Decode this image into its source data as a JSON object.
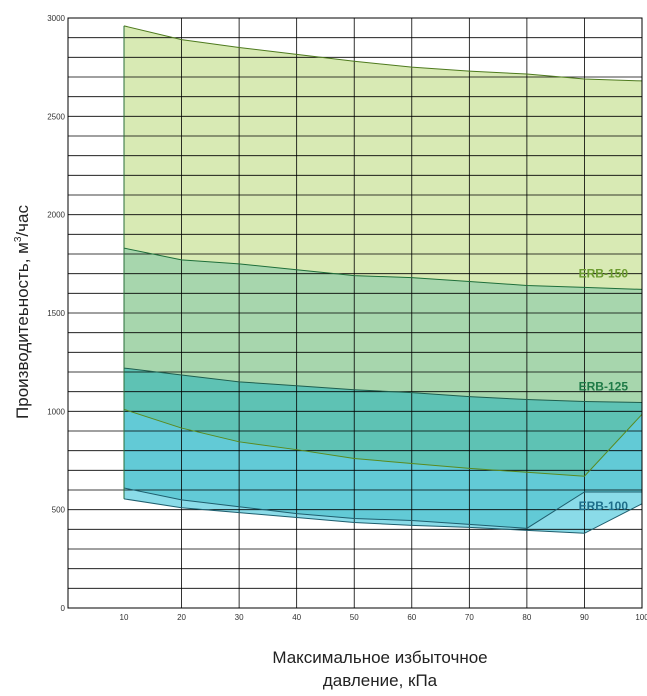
{
  "chart_data": {
    "type": "area",
    "title": "",
    "ylabel_main": "Производитеьность, м",
    "ylabel_sup": "3",
    "ylabel_tail": "/час",
    "xlabel_line1": "Максимальное избыточное",
    "xlabel_line2": "давление, кПа",
    "x_ticks": [
      10,
      20,
      30,
      40,
      50,
      60,
      70,
      80,
      90,
      100
    ],
    "x_tick_labels": [
      "10",
      "20",
      "30",
      "40",
      "50",
      "60",
      "70",
      "80",
      "90",
      "100"
    ],
    "y_ticks": [
      0,
      500,
      1000,
      1500,
      2000,
      2500,
      3000
    ],
    "y_tick_labels": [
      "0",
      "500",
      "1000",
      "1500",
      "2000",
      "2500",
      "3000"
    ],
    "xlim": [
      0,
      100
    ],
    "ylim": [
      0,
      3000
    ],
    "grid": true,
    "series": [
      {
        "name": "ERB-150",
        "color": "#d8eab4",
        "line_color": "#4e7a1e",
        "label_color": "#6a9a2e",
        "upper": {
          "x": [
            10,
            20,
            30,
            40,
            50,
            60,
            70,
            80,
            90,
            100
          ],
          "y": [
            2960,
            2890,
            2850,
            2815,
            2780,
            2750,
            2730,
            2715,
            2690,
            2680
          ]
        },
        "lower": {
          "x": [
            10,
            20,
            30,
            40,
            50,
            60,
            70,
            80,
            90,
            100
          ],
          "y": [
            1830,
            1770,
            1750,
            1720,
            1690,
            1680,
            1660,
            1640,
            1630,
            1620
          ]
        }
      },
      {
        "name": "ERB-125",
        "color": "#a7d6ad",
        "line_color": "#1e6e3a",
        "label_color": "#1e7a46",
        "upper": {
          "x": [
            10,
            20,
            30,
            40,
            50,
            60,
            70,
            80,
            90,
            100
          ],
          "y": [
            1830,
            1770,
            1750,
            1720,
            1690,
            1680,
            1660,
            1640,
            1630,
            1620
          ]
        },
        "lower": {
          "x": [
            10,
            20,
            30,
            40,
            50,
            60,
            70,
            80,
            90,
            100
          ],
          "y": [
            1220,
            1185,
            1150,
            1130,
            1110,
            1095,
            1075,
            1060,
            1050,
            1045
          ]
        }
      },
      {
        "name": "",
        "color": "#5ec2b4",
        "line_color": "#1e5e4e",
        "label_color": "",
        "upper": {
          "x": [
            10,
            20,
            30,
            40,
            50,
            60,
            70,
            80,
            90,
            100
          ],
          "y": [
            1220,
            1185,
            1150,
            1130,
            1110,
            1095,
            1075,
            1060,
            1050,
            1045
          ]
        },
        "lower": {
          "x": [
            10,
            20,
            30,
            40,
            50,
            60,
            70,
            80,
            90,
            100
          ],
          "y": [
            1010,
            915,
            845,
            805,
            760,
            735,
            710,
            690,
            670,
            985
          ]
        }
      },
      {
        "name": "",
        "color": "#62cad6",
        "line_color": "#5a8a1e",
        "label_color": "",
        "upper": {
          "x": [
            10,
            20,
            30,
            40,
            50,
            60,
            70,
            80,
            90,
            100
          ],
          "y": [
            1010,
            915,
            845,
            805,
            760,
            735,
            710,
            690,
            670,
            985
          ]
        },
        "lower": {
          "x": [
            10,
            20,
            30,
            40,
            50,
            60,
            70,
            80,
            90,
            100
          ],
          "y": [
            610,
            550,
            515,
            480,
            455,
            445,
            425,
            405,
            590,
            590
          ]
        }
      },
      {
        "name": "ERB-100",
        "color": "#8adbe8",
        "line_color": "#1e5e6e",
        "label_color": "#1e6e8a",
        "upper": {
          "x": [
            10,
            20,
            30,
            40,
            50,
            60,
            70,
            80,
            90,
            100
          ],
          "y": [
            610,
            550,
            515,
            480,
            455,
            445,
            425,
            405,
            590,
            590
          ]
        },
        "lower": {
          "x": [
            10,
            20,
            30,
            40,
            50,
            60,
            70,
            80,
            90,
            100
          ],
          "y": [
            555,
            510,
            485,
            460,
            435,
            420,
            410,
            395,
            380,
            530
          ]
        }
      }
    ]
  }
}
